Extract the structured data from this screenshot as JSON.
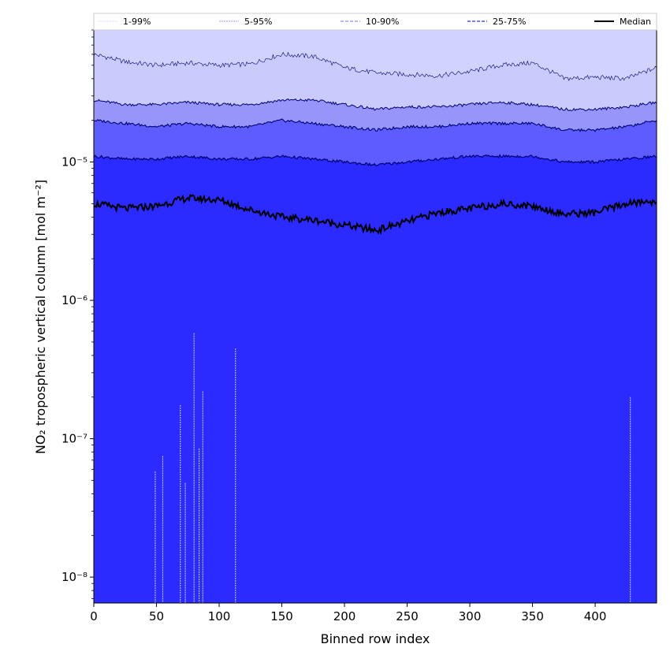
{
  "chart_data": {
    "type": "area",
    "title": "",
    "xlabel": "Binned row index",
    "ylabel": "NO₂ tropospheric vertical column [mol m⁻²]",
    "xlim": [
      0,
      449
    ],
    "ylim": [
      6.5e-09,
      9e-05
    ],
    "yscale": "log",
    "grid": false,
    "legend_position": "top",
    "x_ticks": [
      0,
      50,
      100,
      150,
      200,
      250,
      300,
      350,
      400
    ],
    "y_ticks": [
      1e-08,
      1e-07,
      1e-06,
      1e-05
    ],
    "y_tick_labels": [
      "10⁻⁸",
      "10⁻⁷",
      "10⁻⁶",
      "10⁻⁵"
    ],
    "legend": [
      "1-99%",
      "5-95%",
      "10-90%",
      "25-75%",
      "Median"
    ],
    "colors": {
      "band_1_99": "#d2d2ff",
      "band_5_95": "#cacafc",
      "band_10_90": "#9696fa",
      "band_25_75": "#5c5cff",
      "band_lower": "#2b2bff",
      "median_line": "#000000",
      "percentile_line": "#00006e"
    },
    "x": [
      0,
      25,
      50,
      75,
      100,
      125,
      150,
      175,
      200,
      225,
      250,
      275,
      300,
      325,
      350,
      375,
      400,
      425,
      449
    ],
    "series": [
      {
        "name": "1-99%",
        "lower": [
          6.5e-09,
          6.5e-09,
          6.5e-09,
          6.5e-09,
          6.5e-09,
          6.5e-09,
          6.5e-09,
          6.5e-09,
          6.5e-09,
          6.5e-09,
          6.5e-09,
          6.5e-09,
          6.5e-09,
          6.5e-09,
          6.5e-09,
          6.5e-09,
          6.5e-09,
          6.5e-09,
          6.5e-09
        ]
      },
      {
        "name": "5-95%",
        "upper": [
          6e-05,
          5.3e-05,
          5e-05,
          5.2e-05,
          5e-05,
          5.1e-05,
          6e-05,
          5.8e-05,
          4.8e-05,
          4.4e-05,
          4.3e-05,
          4.2e-05,
          4.5e-05,
          5e-05,
          5.2e-05,
          4e-05,
          4.1e-05,
          4e-05,
          4.8e-05
        ],
        "lower": [
          6.5e-09,
          6.5e-09,
          6.5e-09,
          6.5e-09,
          6.5e-09,
          6.5e-09,
          6.5e-09,
          6.5e-09,
          6.5e-09,
          6.5e-09,
          6.5e-09,
          6.5e-09,
          6.5e-09,
          6.5e-09,
          6.5e-09,
          6.5e-09,
          6.5e-09,
          6.5e-09,
          6.5e-09
        ]
      },
      {
        "name": "10-90%",
        "upper": [
          2.8e-05,
          2.6e-05,
          2.6e-05,
          2.7e-05,
          2.6e-05,
          2.6e-05,
          2.8e-05,
          2.8e-05,
          2.6e-05,
          2.4e-05,
          2.5e-05,
          2.5e-05,
          2.6e-05,
          2.7e-05,
          2.6e-05,
          2.4e-05,
          2.4e-05,
          2.5e-05,
          2.7e-05
        ],
        "lower": [
          6.5e-09,
          6.5e-09,
          6.5e-09,
          6.5e-09,
          6.5e-09,
          6.5e-09,
          6.5e-09,
          6.5e-09,
          6.5e-09,
          6.5e-09,
          6.5e-09,
          6.5e-09,
          6.5e-09,
          6.5e-09,
          6.5e-09,
          6.5e-09,
          6.5e-09,
          6.5e-09,
          6.5e-09
        ]
      },
      {
        "name": "25-75%",
        "upper": [
          2e-05,
          1.9e-05,
          1.8e-05,
          1.9e-05,
          1.8e-05,
          1.8e-05,
          2e-05,
          1.9e-05,
          1.8e-05,
          1.7e-05,
          1.8e-05,
          1.8e-05,
          1.9e-05,
          1.9e-05,
          1.9e-05,
          1.7e-05,
          1.7e-05,
          1.8e-05,
          2e-05
        ],
        "lower": [
          1.1e-05,
          1.05e-05,
          1.05e-05,
          1.1e-05,
          1.05e-05,
          1.05e-05,
          1.1e-05,
          1.05e-05,
          1e-05,
          9.5e-06,
          1e-05,
          1.05e-05,
          1.1e-05,
          1.1e-05,
          1.1e-05,
          1e-05,
          1e-05,
          1.05e-05,
          1.1e-05
        ]
      },
      {
        "name": "Median",
        "values": [
          5e-06,
          4.6e-06,
          4.8e-06,
          5.5e-06,
          5.3e-06,
          4.5e-06,
          4e-06,
          3.8e-06,
          3.5e-06,
          3.2e-06,
          3.7e-06,
          4.3e-06,
          4.6e-06,
          5e-06,
          4.8e-06,
          4.2e-06,
          4.3e-06,
          5e-06,
          5.2e-06
        ]
      }
    ],
    "outlier_spikes": [
      {
        "x": 49,
        "min": 6.5e-09,
        "max": 5.8e-08
      },
      {
        "x": 55,
        "min": 6.5e-09,
        "max": 7.5e-08
      },
      {
        "x": 69,
        "min": 6.5e-09,
        "max": 1.75e-07
      },
      {
        "x": 73,
        "min": 6.5e-09,
        "max": 4.8e-08
      },
      {
        "x": 80,
        "min": 6.5e-09,
        "max": 5.8e-07
      },
      {
        "x": 84,
        "min": 6.5e-09,
        "max": 8.5e-08
      },
      {
        "x": 87,
        "min": 6.5e-09,
        "max": 2.2e-07
      },
      {
        "x": 113,
        "min": 6.5e-09,
        "max": 4.5e-07
      },
      {
        "x": 428,
        "min": 6.5e-09,
        "max": 2e-07
      }
    ]
  }
}
